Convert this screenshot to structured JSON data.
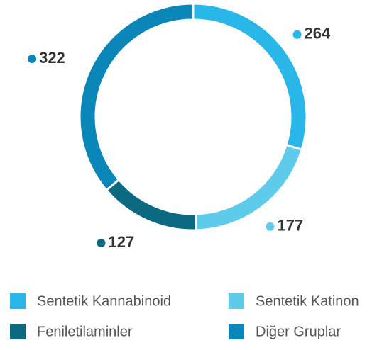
{
  "chart_data": {
    "type": "donut",
    "categories": [
      "Sentetik Kannabinoid",
      "Sentetik Katinon",
      "Feniletilaminler",
      "Diğer Gruplar"
    ],
    "values": [
      264,
      177,
      127,
      322
    ],
    "colors": [
      "#29b6e8",
      "#5ecbea",
      "#0b6a82",
      "#0a86b8"
    ],
    "legend": "bottom"
  }
}
